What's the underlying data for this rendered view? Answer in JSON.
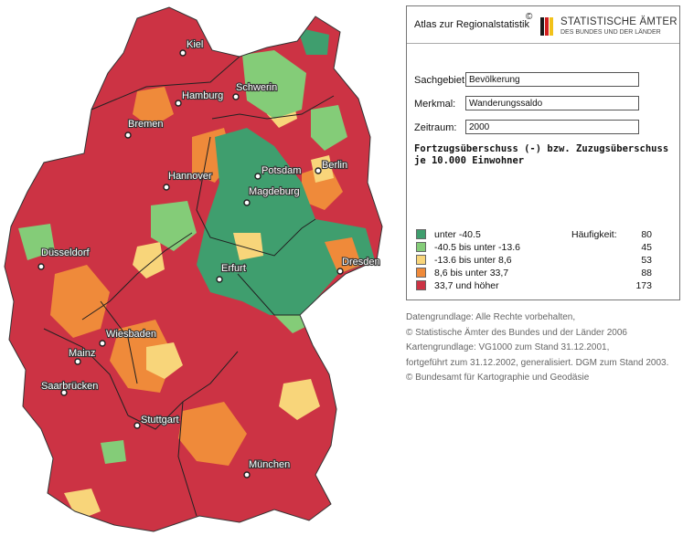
{
  "panel": {
    "atlas_title": "Atlas zur Regionalstatistik",
    "copyright_mark": "©",
    "logo": {
      "line1": "STATISTISCHE ÄMTER",
      "line2": "DES BUNDES UND DER LÄNDER",
      "flag_colors": [
        "#1a1a1a",
        "#d21f1f",
        "#f2c21a"
      ]
    },
    "fields": [
      {
        "label": "Sachgebiet:",
        "value": "Bevölkerung"
      },
      {
        "label": "Merkmal:",
        "value": "Wanderungssaldo"
      },
      {
        "label": "Zeitraum:",
        "value": "2000"
      }
    ],
    "subtitle": "Fortzugsüberschuss (-) bzw. Zuzugsüberschuss\nje 10.000 Einwohner",
    "frequency_label": "Häufigkeit:",
    "legend": [
      {
        "label": "unter -40.5",
        "count": "80",
        "color": "#3f9e6e"
      },
      {
        "label": "-40.5 bis unter -13.6",
        "count": "45",
        "color": "#84cc78"
      },
      {
        "label": "-13.6 bis unter 8,6",
        "count": "53",
        "color": "#f8d57a"
      },
      {
        "label": "8,6 bis unter 33,7",
        "count": "88",
        "color": "#ef8a3a"
      },
      {
        "label": "33,7 und höher",
        "count": "173",
        "color": "#cc3344"
      }
    ]
  },
  "credits": [
    "Datengrundlage: Alle Rechte vorbehalten,",
    "© Statistische Ämter des Bundes und der Länder 2006",
    "Kartengrundlage: VG1000 zum Stand 31.12.2001,",
    "fortgeführt zum 31.12.2002, generalisiert. DGM zum Stand 2003.",
    "© Bundesamt für Kartographie und Geodäsie"
  ],
  "map": {
    "cities": [
      {
        "name": "Kiel"
      },
      {
        "name": "Hamburg"
      },
      {
        "name": "Schwerin"
      },
      {
        "name": "Bremen"
      },
      {
        "name": "Berlin"
      },
      {
        "name": "Potsdam"
      },
      {
        "name": "Hannover"
      },
      {
        "name": "Magdeburg"
      },
      {
        "name": "Düsseldorf"
      },
      {
        "name": "Dresden"
      },
      {
        "name": "Erfurt"
      },
      {
        "name": "Wiesbaden"
      },
      {
        "name": "Mainz"
      },
      {
        "name": "Saarbrücken"
      },
      {
        "name": "Stuttgart"
      },
      {
        "name": "München"
      }
    ]
  }
}
